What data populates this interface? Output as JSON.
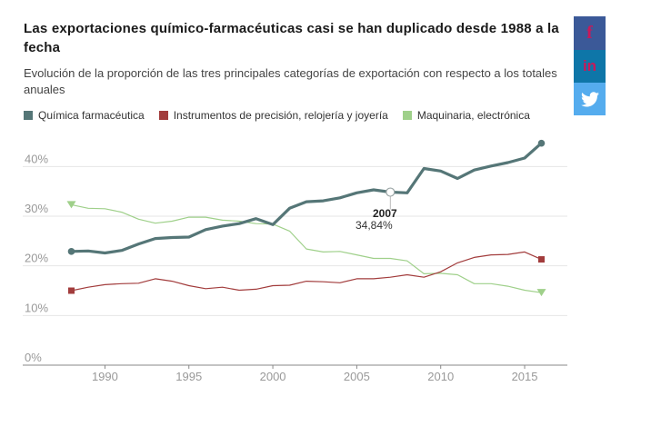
{
  "title": "Las exportaciones químico-farmacéuticas casi se han duplicado desde 1988 a la fecha",
  "subtitle": "Evolución de la proporción de las tres principales categorías de exportación con respecto a los totales anuales",
  "social": {
    "facebook_icon": "f",
    "linkedin_icon": "in",
    "twitter_icon": "bird-icon"
  },
  "colors": {
    "quimica": "#557677",
    "instrumentos": "#a23c3c",
    "maquinaria": "#9fd08a",
    "facebook": "#3b5998",
    "linkedin": "#0e76a8",
    "twitter": "#55acee"
  },
  "chart_data": {
    "type": "line",
    "x": [
      1988,
      1989,
      1990,
      1991,
      1992,
      1993,
      1994,
      1995,
      1996,
      1997,
      1998,
      1999,
      2000,
      2001,
      2002,
      2003,
      2004,
      2005,
      2006,
      2007,
      2008,
      2009,
      2010,
      2011,
      2012,
      2013,
      2014,
      2015,
      2016
    ],
    "series": [
      {
        "name": "Química farmacéutica",
        "values": [
          22.9,
          23.0,
          22.6,
          23.1,
          24.4,
          25.5,
          25.7,
          25.8,
          27.3,
          28.0,
          28.5,
          29.5,
          28.3,
          31.6,
          32.9,
          33.1,
          33.7,
          34.7,
          35.3,
          34.84,
          34.7,
          39.6,
          39.1,
          37.6,
          39.3,
          40.1,
          40.8,
          41.7,
          44.7
        ]
      },
      {
        "name": "Instrumentos de precisión, relojería y joyería",
        "values": [
          15.0,
          15.7,
          16.2,
          16.4,
          16.5,
          17.4,
          16.9,
          16.0,
          15.4,
          15.7,
          15.1,
          15.3,
          16.0,
          16.1,
          16.9,
          16.8,
          16.6,
          17.4,
          17.4,
          17.7,
          18.2,
          17.7,
          18.8,
          20.6,
          21.7,
          22.2,
          22.3,
          22.8,
          21.3
        ]
      },
      {
        "name": "Maquinaria, electrónica",
        "values": [
          32.3,
          31.6,
          31.5,
          30.8,
          29.4,
          28.6,
          29.0,
          29.8,
          29.8,
          29.2,
          29.0,
          28.5,
          28.4,
          27.0,
          23.4,
          22.8,
          22.9,
          22.2,
          21.5,
          21.5,
          21.0,
          18.4,
          18.5,
          18.2,
          16.4,
          16.4,
          15.9,
          15.1,
          14.6
        ]
      }
    ],
    "ylim": [
      0,
      47
    ],
    "xlim": [
      1986.8,
      2017.0
    ],
    "y_ticks": [
      "0%",
      "10%",
      "20%",
      "30%",
      "40%"
    ],
    "y_tick_values": [
      0,
      10,
      20,
      30,
      40
    ],
    "x_ticks": [
      "1990",
      "1995",
      "2000",
      "2005",
      "2010",
      "2015"
    ],
    "x_tick_values": [
      1990,
      1995,
      2000,
      2005,
      2010,
      2015
    ],
    "grid": true,
    "legend_position": "top-left",
    "annotation": {
      "x": 2007,
      "y": 34.84,
      "label_year": "2007",
      "label_value": "34,84%"
    }
  }
}
